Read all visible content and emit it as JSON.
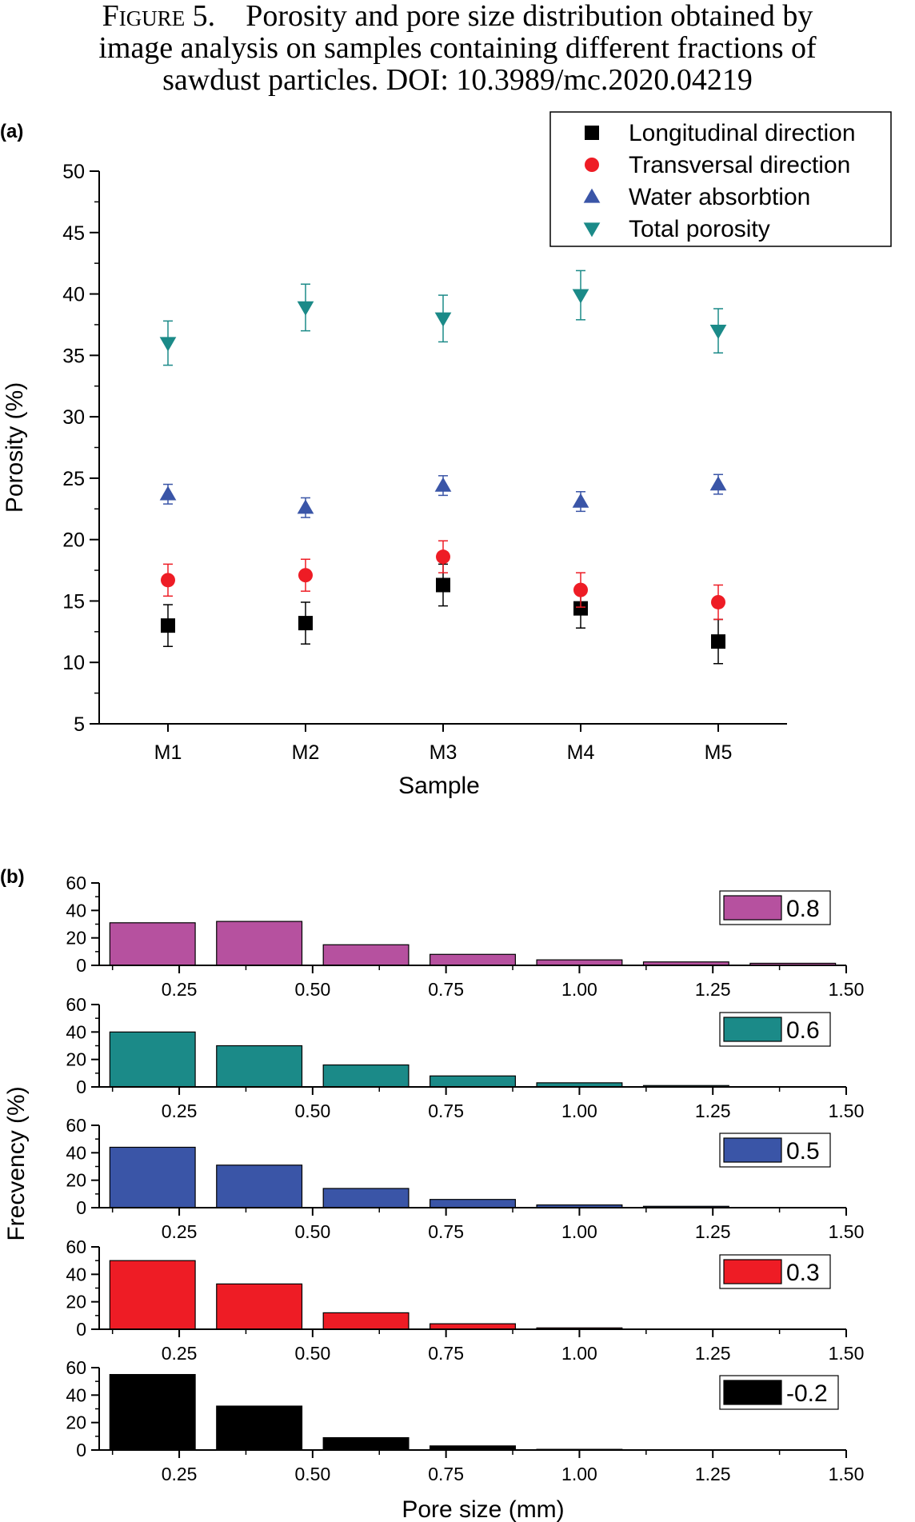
{
  "caption": {
    "label": "Figure 5.",
    "lines": [
      "Porosity and pore size distribution obtained by",
      "image analysis on samples containing different fractions of",
      "sawdust particles. DOI: 10.3989/mc.2020.04219"
    ]
  },
  "chart_data": [
    {
      "panel_label": "(a)",
      "type": "scatter",
      "xlabel": "Sample",
      "ylabel": "Porosity (%)",
      "categories": [
        "M1",
        "M2",
        "M3",
        "M4",
        "M5"
      ],
      "ylim": [
        5,
        50
      ],
      "yticks": [
        5,
        10,
        15,
        20,
        25,
        30,
        35,
        40,
        45,
        50
      ],
      "legend_position": "top-right",
      "series": [
        {
          "name": "Longitudinal direction",
          "marker": "square",
          "color": "#000000",
          "values": [
            13.0,
            13.2,
            16.3,
            14.4,
            11.7
          ],
          "errors": [
            1.7,
            1.7,
            1.7,
            1.6,
            1.8
          ]
        },
        {
          "name": "Transversal  direction",
          "marker": "circle",
          "color": "#ee1c25",
          "values": [
            16.7,
            17.1,
            18.6,
            15.9,
            14.9
          ],
          "errors": [
            1.3,
            1.3,
            1.3,
            1.4,
            1.4
          ]
        },
        {
          "name": "Water absorbtion",
          "marker": "triangle-up",
          "color": "#3a55a7",
          "values": [
            23.7,
            22.6,
            24.4,
            23.1,
            24.5
          ],
          "errors": [
            0.8,
            0.8,
            0.8,
            0.8,
            0.8
          ]
        },
        {
          "name": "Total porosity",
          "marker": "triangle-down",
          "color": "#1b8a88",
          "values": [
            36.0,
            38.9,
            38.0,
            39.9,
            37.0
          ],
          "errors": [
            1.8,
            1.9,
            1.9,
            2.0,
            1.8
          ]
        }
      ]
    },
    {
      "panel_label": "(b)",
      "type": "bar",
      "xlabel": "Pore size  (mm)",
      "ylabel": "Frecvency (%)",
      "xlim": [
        0.1,
        1.5
      ],
      "xticks": [
        "0.25",
        "0.50",
        "0.75",
        "1.00",
        "1.25",
        "1.50"
      ],
      "ylim": [
        0,
        60
      ],
      "yticks": [
        0,
        20,
        40,
        60
      ],
      "bin_centers": [
        0.2,
        0.4,
        0.6,
        0.8,
        1.0,
        1.2,
        1.4
      ],
      "bin_width": 0.16,
      "legend_position": "right",
      "series": [
        {
          "name": "0.8",
          "color": "#b6519f",
          "values": [
            31,
            32,
            15,
            8,
            4,
            2.5,
            1.5
          ]
        },
        {
          "name": "0.6",
          "color": "#1b8a88",
          "values": [
            40,
            30,
            16,
            8,
            3,
            1,
            0
          ]
        },
        {
          "name": "0.5",
          "color": "#3a55a7",
          "values": [
            44,
            31,
            14,
            6,
            2,
            1,
            0
          ]
        },
        {
          "name": "0.3",
          "color": "#ee1c25",
          "values": [
            50,
            33,
            12,
            4,
            1,
            0,
            0
          ]
        },
        {
          "name": "-0.2",
          "color": "#000000",
          "values": [
            55,
            32,
            9,
            3,
            0.5,
            0,
            0
          ]
        }
      ]
    }
  ]
}
